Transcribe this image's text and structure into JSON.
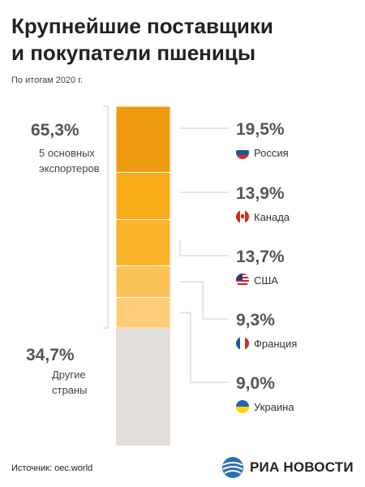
{
  "title_lines": [
    "Крупнейшие поставщики",
    "и покупатели пшеницы"
  ],
  "subtitle": "По итогам 2020 г.",
  "left_groups": [
    {
      "value": "65,3%",
      "label_lines": [
        "5 основных",
        "экспортеров"
      ]
    },
    {
      "value": "34,7%",
      "label_lines": [
        "Другие",
        "страны"
      ]
    }
  ],
  "countries": [
    {
      "pct": "19,5%",
      "name": "Россия",
      "flag": "russia-flag-icon"
    },
    {
      "pct": "13,9%",
      "name": "Канада",
      "flag": "canada-flag-icon"
    },
    {
      "pct": "13,7%",
      "name": "США",
      "flag": "usa-flag-icon"
    },
    {
      "pct": "9,3%",
      "name": "Франция",
      "flag": "france-flag-icon"
    },
    {
      "pct": "9,0%",
      "name": "Украина",
      "flag": "ukraine-flag-icon"
    }
  ],
  "source": "Источник: oec.world",
  "logo_text": "РИА НОВОСТИ",
  "colors": {
    "segments": [
      "#EF9B0F",
      "#F8AB18",
      "#FBB32A",
      "#FCC256",
      "#FFCC78"
    ],
    "others": "#E3DEDA",
    "connector": "#CCCCCC"
  },
  "chart_data": {
    "type": "bar",
    "stacked": true,
    "categories": [
      "Россия",
      "Канада",
      "США",
      "Франция",
      "Украина"
    ],
    "values": [
      19.5,
      13.9,
      13.7,
      9.3,
      9.0
    ],
    "remainder": {
      "value": 34.7
    },
    "top5_total": 65.3,
    "ylim": [
      0,
      100
    ]
  }
}
